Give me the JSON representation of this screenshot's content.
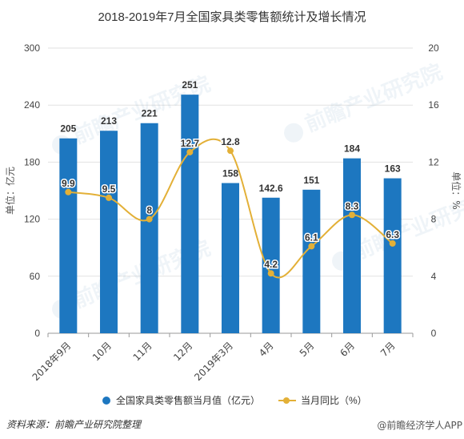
{
  "title": "2018-2019年7月全国家具类零售额统计及增长情况",
  "chart_data": {
    "type": "bar+line",
    "categories": [
      "2018年9月",
      "10月",
      "11月",
      "12月",
      "2019年3月",
      "4月",
      "5月",
      "6月",
      "7月"
    ],
    "series": [
      {
        "name": "全国家具类零售额当月值（亿元）",
        "type": "bar",
        "axis": "left",
        "color": "#1d77c0",
        "values": [
          205,
          213,
          221,
          251,
          158,
          142.6,
          151,
          184,
          163
        ],
        "labels": [
          "205",
          "213",
          "221",
          "251",
          "158",
          "142.6",
          "151",
          "184",
          "163"
        ]
      },
      {
        "name": "当月同比（%）",
        "type": "line",
        "axis": "right",
        "color": "#e3b037",
        "values": [
          9.9,
          9.5,
          8,
          12.7,
          12.8,
          4.2,
          6.1,
          8.3,
          6.3
        ],
        "labels": [
          "9.9",
          "9.5",
          "8",
          "12.7",
          "12.8",
          "4.2",
          "6.1",
          "8.3",
          "6.3"
        ]
      }
    ],
    "ylabel_left": "单位：亿元",
    "ylabel_right": "单位：%",
    "ylim_left": [
      0,
      300
    ],
    "yticks_left": [
      "0",
      "60",
      "120",
      "180",
      "240",
      "300"
    ],
    "ylim_right": [
      0,
      20
    ],
    "yticks_right": [
      "0",
      "4",
      "8",
      "12",
      "16",
      "20"
    ],
    "grid": true,
    "legend": "bottom-center"
  },
  "watermark": "前瞻产业研究院",
  "footer": {
    "source": "资料来源：前瞻产业研究院整理",
    "watermark": "@前瞻经济学人APP"
  }
}
